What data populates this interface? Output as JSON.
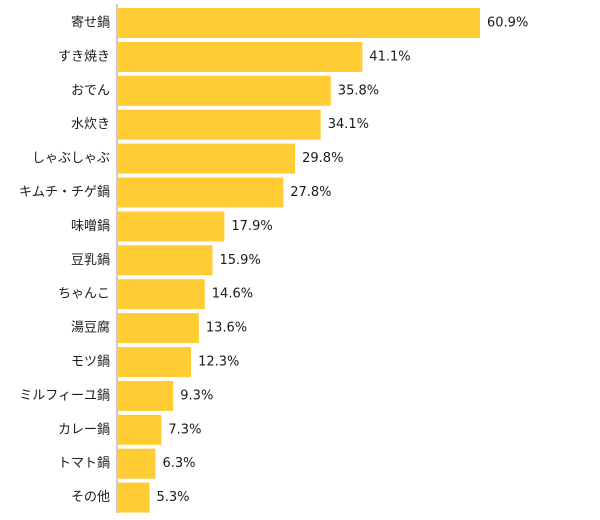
{
  "chart_data": {
    "type": "bar",
    "orientation": "horizontal",
    "categories": [
      "寄せ鍋",
      "すき焼き",
      "おでん",
      "水炊き",
      "しゃぶしゃぶ",
      "キムチ・チゲ鍋",
      "味噌鍋",
      "豆乳鍋",
      "ちゃんこ",
      "湯豆腐",
      "モツ鍋",
      "ミルフィーユ鍋",
      "カレー鍋",
      "トマト鍋",
      "その他"
    ],
    "values": [
      60.9,
      41.1,
      35.8,
      34.1,
      29.8,
      27.8,
      17.9,
      15.9,
      14.6,
      13.6,
      12.3,
      9.3,
      7.3,
      6.3,
      5.3
    ],
    "value_labels": [
      "60.9%",
      "41.1%",
      "35.8%",
      "34.1%",
      "29.8%",
      "27.8%",
      "17.9%",
      "15.9%",
      "14.6%",
      "13.6%",
      "12.3%",
      "9.3%",
      "7.3%",
      "6.3%",
      "5.3%"
    ],
    "unit": "%",
    "xlim": [
      0,
      100
    ],
    "bar_color": "#FFCC33",
    "axis_color": "#999999",
    "grid": false,
    "legend": "none"
  }
}
